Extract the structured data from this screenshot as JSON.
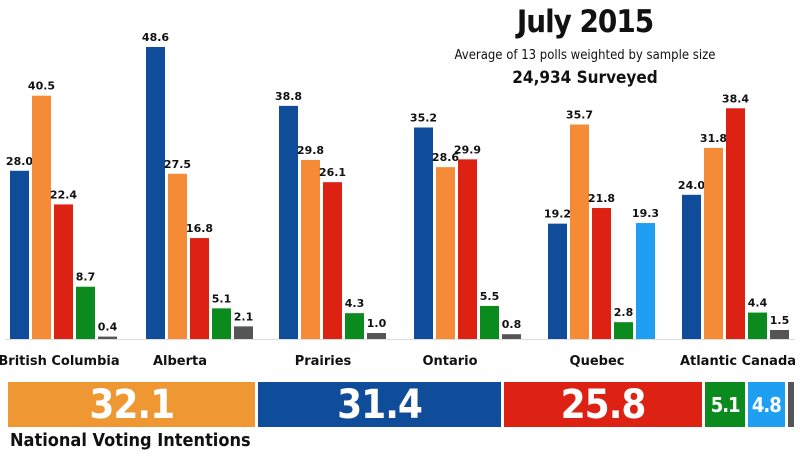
{
  "header": {
    "title": "July 2015",
    "subtitle": "Average of 13 polls weighted by sample size",
    "surveyed": "24,934 Surveyed"
  },
  "colors": {
    "conservative": "#0f4c99",
    "ndp": "#f58b36",
    "liberal": "#dd2214",
    "green": "#0b8a1e",
    "bloc": "#1e9ff2",
    "other": "#555555",
    "national_ndp": "#ef9833"
  },
  "chart_data": {
    "type": "bar",
    "title": "July 2015",
    "categories": [
      "British Columbia",
      "Alberta",
      "Prairies",
      "Ontario",
      "Quebec",
      "Atlantic Canada"
    ],
    "ylim": [
      0,
      50
    ],
    "grid": false,
    "series": [
      {
        "key": "conservative",
        "values": [
          28.0,
          48.6,
          38.8,
          35.2,
          19.2,
          24.0
        ]
      },
      {
        "key": "ndp",
        "values": [
          40.5,
          27.5,
          29.8,
          28.6,
          35.7,
          31.8
        ]
      },
      {
        "key": "liberal",
        "values": [
          22.4,
          16.8,
          26.1,
          29.9,
          21.8,
          38.4
        ]
      },
      {
        "key": "green",
        "values": [
          8.7,
          5.1,
          4.3,
          5.5,
          2.8,
          4.4
        ]
      },
      {
        "key": "bloc",
        "values": [
          null,
          null,
          null,
          null,
          19.3,
          null
        ]
      },
      {
        "key": "other",
        "values": [
          0.4,
          2.1,
          1.0,
          0.8,
          null,
          1.5
        ]
      }
    ]
  },
  "national": {
    "label": "National Voting Intentions",
    "segments": [
      {
        "key": "ndp",
        "value": 32.1,
        "label": "32.1"
      },
      {
        "key": "conservative",
        "value": 31.4,
        "label": "31.4"
      },
      {
        "key": "liberal",
        "value": 25.8,
        "label": "25.8"
      },
      {
        "key": "green",
        "value": 5.1,
        "label": "5.1"
      },
      {
        "key": "bloc",
        "value": 4.8,
        "label": "4.8"
      },
      {
        "key": "other",
        "value": 0.8,
        "label": ""
      }
    ]
  }
}
